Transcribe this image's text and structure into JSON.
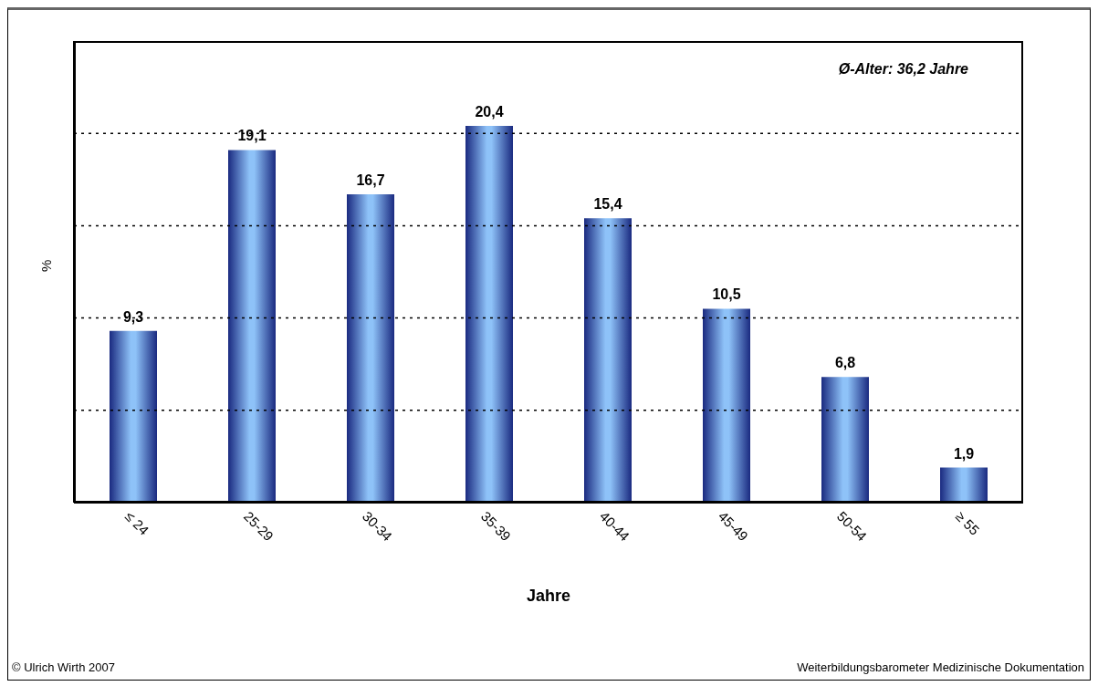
{
  "chart_data": {
    "type": "bar",
    "xlabel": "Jahre",
    "ylabel": "%",
    "categories": [
      "≤ 24",
      "25-29",
      "30-34",
      "35-39",
      "40-44",
      "45-49",
      "50-54",
      "≥ 55"
    ],
    "values": [
      9.3,
      19.1,
      16.7,
      20.4,
      15.4,
      10.5,
      6.8,
      1.9
    ],
    "value_labels": [
      "9,3",
      "19,1",
      "16,7",
      "20,4",
      "15,4",
      "10,5",
      "6,8",
      "1,9"
    ],
    "color": "#8ec2f8",
    "ylim": [
      0,
      25
    ],
    "yticks": [
      {
        "value": 5,
        "label": null
      },
      {
        "value": 10,
        "label": null
      },
      {
        "value": 15,
        "label": null
      },
      {
        "value": 20,
        "label": null
      }
    ],
    "grid": "y",
    "tick_labels": "x",
    "annotations": [
      "Ø-Alter: 36,2 Jahre",
      "© Ulrich Wirth 2007",
      "Weiterbildungsbarometer Medizinische Dokumentation"
    ]
  }
}
